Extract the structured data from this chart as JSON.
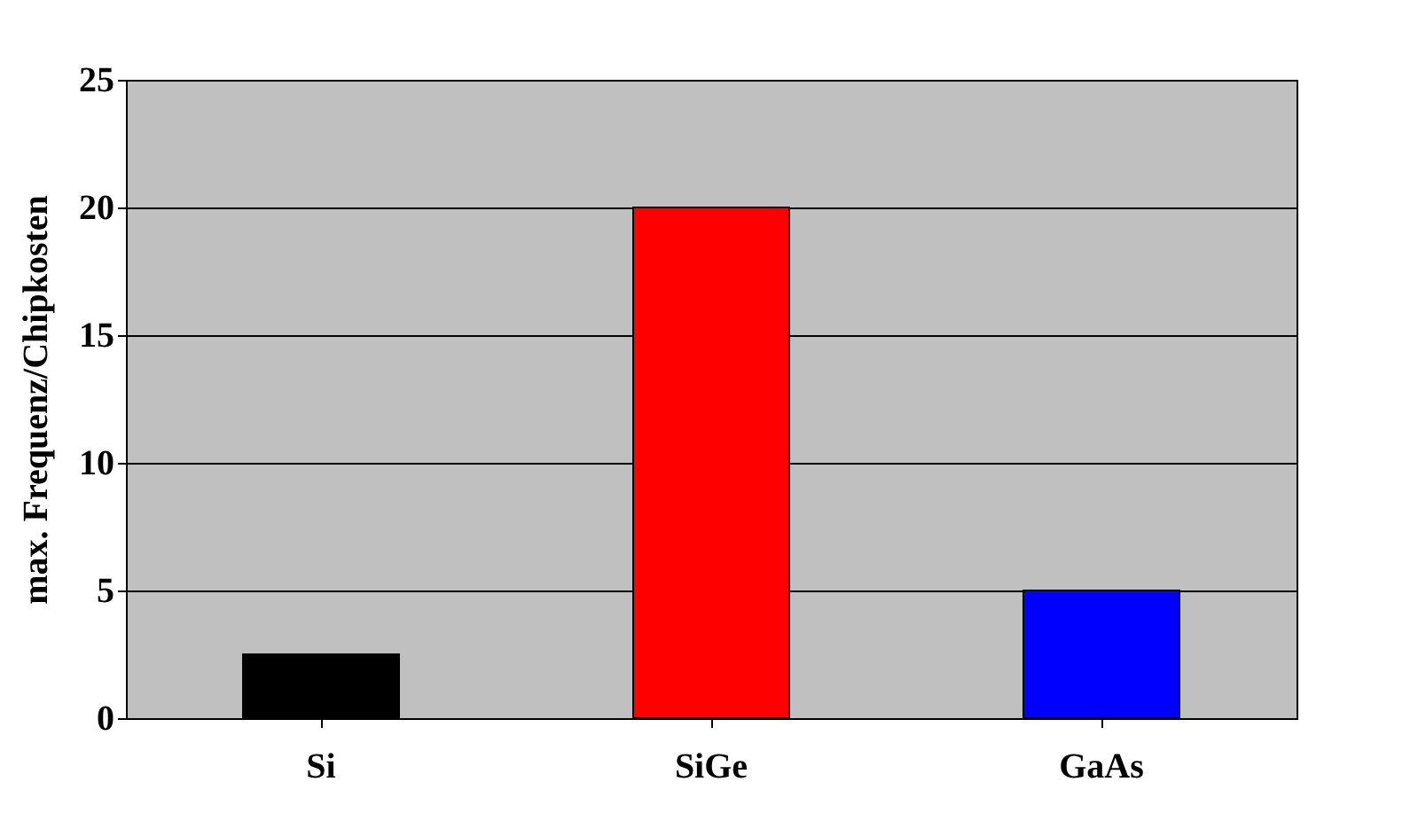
{
  "chart_data": {
    "type": "bar",
    "ylabel": "max. Frequenz/Chipkosten",
    "categories": [
      "Si",
      "SiGe",
      "GaAs"
    ],
    "values": [
      2.5,
      20,
      5
    ],
    "colors": [
      "#000000",
      "#ff0000",
      "#0000ff"
    ],
    "ylim": [
      0,
      25
    ],
    "yticks": [
      0,
      5,
      10,
      15,
      20,
      25
    ],
    "grid": "y"
  }
}
